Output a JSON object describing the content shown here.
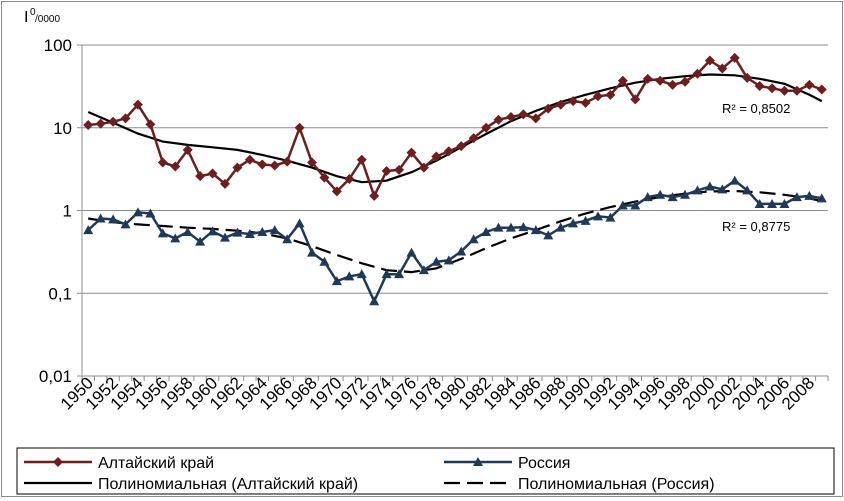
{
  "chart_data": {
    "type": "line",
    "title": "",
    "ylabel_main": "I",
    "ylabel_sup": "0",
    "ylabel_sub": "/0000",
    "y_scale": "log",
    "ylim": [
      0.01,
      100
    ],
    "y_ticks": [
      {
        "value": 100,
        "label": "100"
      },
      {
        "value": 10,
        "label": "10"
      },
      {
        "value": 1,
        "label": "1"
      },
      {
        "value": 0.1,
        "label": "0,1"
      },
      {
        "value": 0.01,
        "label": "0,01"
      }
    ],
    "x_start": 1950,
    "x_end": 2009,
    "x_tick_labels": [
      "1950",
      "1952",
      "1954",
      "1956",
      "1958",
      "1960",
      "1962",
      "1964",
      "1966",
      "1968",
      "1970",
      "1972",
      "1974",
      "1976",
      "1978",
      "1980",
      "1982",
      "1984",
      "1986",
      "1988",
      "1990",
      "1992",
      "1994",
      "1996",
      "1998",
      "2000",
      "2002",
      "2004",
      "2006",
      "2008"
    ],
    "grid": true,
    "legend_position": "bottom",
    "series": [
      {
        "name": "Алтайский край",
        "color": "#6b1f1f",
        "marker": "diamond",
        "values": [
          10.8,
          11.2,
          11.8,
          13.0,
          19.0,
          11.0,
          3.8,
          3.4,
          5.4,
          2.6,
          2.8,
          2.1,
          3.3,
          4.1,
          3.6,
          3.5,
          3.9,
          10.0,
          3.8,
          2.5,
          1.7,
          2.4,
          4.1,
          1.5,
          3.0,
          3.1,
          5.0,
          3.3,
          4.5,
          5.2,
          6.0,
          7.5,
          10.0,
          12.5,
          13.5,
          14.5,
          13.0,
          17.0,
          19.0,
          21.0,
          20.0,
          24.0,
          25.0,
          37.0,
          22.0,
          39.0,
          37.0,
          33.0,
          36.0,
          45.0,
          65.0,
          52.0,
          70.0,
          40.0,
          32.0,
          30.0,
          28.0,
          28.0,
          33.0,
          29.0
        ]
      },
      {
        "name": "Россия",
        "color": "#1f3a57",
        "marker": "triangle",
        "values": [
          0.58,
          0.8,
          0.78,
          0.68,
          0.95,
          0.92,
          0.53,
          0.46,
          0.55,
          0.42,
          0.56,
          0.47,
          0.54,
          0.52,
          0.55,
          0.58,
          0.45,
          0.7,
          0.31,
          0.24,
          0.14,
          0.16,
          0.17,
          0.08,
          0.17,
          0.17,
          0.31,
          0.19,
          0.24,
          0.25,
          0.32,
          0.45,
          0.55,
          0.62,
          0.62,
          0.63,
          0.58,
          0.5,
          0.62,
          0.7,
          0.75,
          0.85,
          0.82,
          1.15,
          1.15,
          1.45,
          1.55,
          1.45,
          1.55,
          1.75,
          1.95,
          1.8,
          2.3,
          1.75,
          1.2,
          1.2,
          1.2,
          1.45,
          1.5,
          1.4
        ]
      }
    ],
    "trendlines": [
      {
        "name": "Полиномиальная (Алтайский край)",
        "color": "#000000",
        "style": "solid",
        "r2_label": "R² = 0,8502",
        "points": [
          [
            1950,
            15.5
          ],
          [
            1952,
            11.5
          ],
          [
            1954,
            8.5
          ],
          [
            1956,
            6.8
          ],
          [
            1958,
            6.2
          ],
          [
            1960,
            5.8
          ],
          [
            1962,
            5.4
          ],
          [
            1964,
            4.7
          ],
          [
            1966,
            4.0
          ],
          [
            1968,
            3.3
          ],
          [
            1970,
            2.6
          ],
          [
            1972,
            2.2
          ],
          [
            1974,
            2.3
          ],
          [
            1976,
            2.9
          ],
          [
            1978,
            4.0
          ],
          [
            1980,
            5.8
          ],
          [
            1982,
            8.4
          ],
          [
            1984,
            12.0
          ],
          [
            1986,
            16.0
          ],
          [
            1988,
            20.5
          ],
          [
            1990,
            25.0
          ],
          [
            1992,
            30.0
          ],
          [
            1994,
            35.0
          ],
          [
            1996,
            39.0
          ],
          [
            1998,
            42.0
          ],
          [
            2000,
            44.0
          ],
          [
            2002,
            43.0
          ],
          [
            2004,
            39.0
          ],
          [
            2006,
            34.0
          ],
          [
            2008,
            25.0
          ],
          [
            2009,
            21.0
          ]
        ]
      },
      {
        "name": "Полиномиальная (Россия)",
        "color": "#000000",
        "style": "dashed",
        "r2_label": "R² = 0,8775",
        "points": [
          [
            1950,
            0.8
          ],
          [
            1952,
            0.72
          ],
          [
            1954,
            0.68
          ],
          [
            1956,
            0.65
          ],
          [
            1958,
            0.62
          ],
          [
            1960,
            0.6
          ],
          [
            1962,
            0.57
          ],
          [
            1964,
            0.53
          ],
          [
            1966,
            0.46
          ],
          [
            1968,
            0.37
          ],
          [
            1970,
            0.29
          ],
          [
            1972,
            0.23
          ],
          [
            1974,
            0.19
          ],
          [
            1976,
            0.18
          ],
          [
            1978,
            0.2
          ],
          [
            1980,
            0.26
          ],
          [
            1982,
            0.35
          ],
          [
            1984,
            0.46
          ],
          [
            1986,
            0.58
          ],
          [
            1988,
            0.74
          ],
          [
            1990,
            0.92
          ],
          [
            1992,
            1.1
          ],
          [
            1994,
            1.28
          ],
          [
            1996,
            1.45
          ],
          [
            1998,
            1.6
          ],
          [
            2000,
            1.7
          ],
          [
            2002,
            1.72
          ],
          [
            2004,
            1.66
          ],
          [
            2006,
            1.55
          ],
          [
            2008,
            1.4
          ],
          [
            2009,
            1.3
          ]
        ]
      }
    ]
  }
}
